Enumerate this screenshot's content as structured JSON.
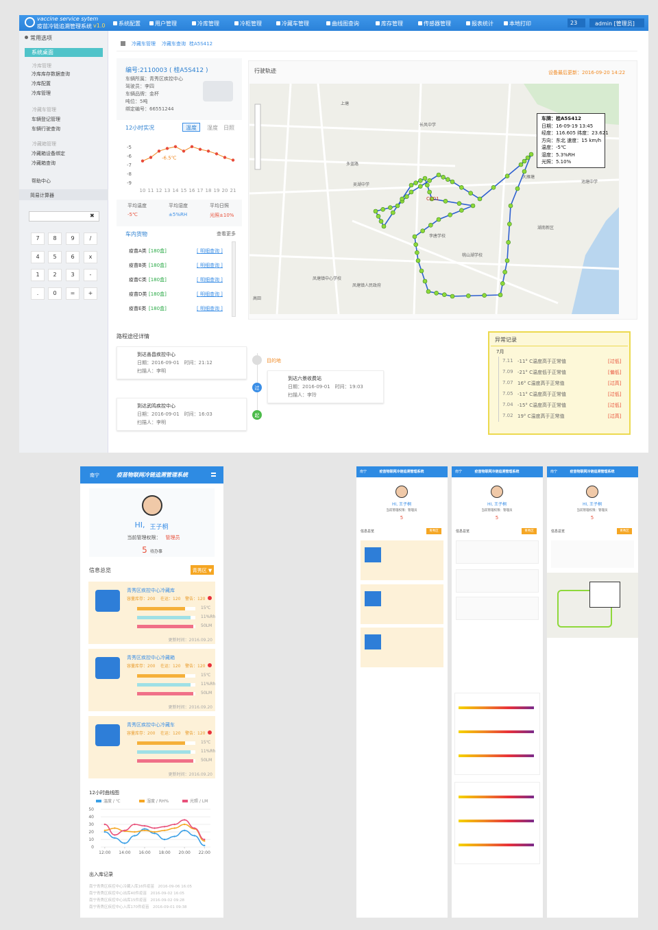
{
  "header": {
    "brand_en": "vaccine service sytem",
    "brand_cn": "疫苗冷链追溯管理系统",
    "version": "v1.0",
    "menu": [
      "系统配置",
      "用户管理",
      "冷库管理",
      "冷柜管理",
      "冷藏车管理",
      "曲线图查询",
      "库存管理",
      "传感器管理",
      "报表统计",
      "本地打印"
    ],
    "badge": "23",
    "user": "admin [管理员]"
  },
  "sidebar": {
    "section": "常用选项",
    "items": [
      {
        "label": "系统桌面",
        "kind": "active"
      },
      {
        "label": "冷库管理",
        "kind": "group"
      },
      {
        "label": "冷库库存数据查询",
        "kind": "link"
      },
      {
        "label": "冷库配置",
        "kind": "link"
      },
      {
        "label": "冷库管理",
        "kind": "link"
      },
      {
        "label": "冷藏车管理",
        "kind": "group"
      },
      {
        "label": "车辆登记管理",
        "kind": "link"
      },
      {
        "label": "车辆行驶查询",
        "kind": "link"
      },
      {
        "label": "冷藏箱管理",
        "kind": "group"
      },
      {
        "label": "冷藏箱设备绑定",
        "kind": "link"
      },
      {
        "label": "冷藏箱查询",
        "kind": "link"
      },
      {
        "label": "帮助中心",
        "kind": "link"
      }
    ],
    "calc_title": "简易计算器",
    "clear": "✖",
    "keys": [
      "7",
      "8",
      "9",
      "/",
      "4",
      "5",
      "6",
      "x",
      "1",
      "2",
      "3",
      "-",
      ".",
      "0",
      "=",
      "+"
    ]
  },
  "breadcrumb": [
    "冷藏车管理",
    "冷藏车查询",
    "桂A5S412"
  ],
  "vehicle": {
    "id": "编号:2110003 ( 桂A5S412 )",
    "details": [
      "车辆所属：青秀区疾控中心",
      "驾驶员：李四",
      "车辆品牌：金杯",
      "吨位：5吨",
      "绑定编号：66551244"
    ],
    "live_title": "12小时实况",
    "tabs": [
      "温度",
      "湿度",
      "日照"
    ],
    "chart": {
      "categories": [
        "10",
        "11",
        "12",
        "13",
        "14",
        "15",
        "16",
        "17",
        "18",
        "19",
        "20",
        "21"
      ],
      "values": [
        -6.6,
        -6.2,
        -5.5,
        -5.2,
        -5.0,
        -5.5,
        -5.0,
        -5.3,
        -5.5,
        -5.8,
        -6.2,
        -6.5
      ],
      "ylim": [
        -9.3,
        -4.4
      ],
      "yticks": [
        -5,
        -6,
        -7,
        -8,
        -9
      ],
      "color": "#f08a24",
      "annotation": "-6.5℃"
    },
    "stats": [
      {
        "label": "平均温度",
        "value": "-5℃"
      },
      {
        "label": "平均湿度",
        "value": "±5%RH"
      },
      {
        "label": "平均日照",
        "value": "光照±10%"
      }
    ],
    "cargo_title": "车内货物",
    "cargo_more": "查看更多",
    "cargo": [
      {
        "name": "疫苗A类",
        "qty": "[180盒]",
        "link": "[ 明细查询 ]"
      },
      {
        "name": "疫苗B类",
        "qty": "[180盒]",
        "link": "[ 明细查询 ]"
      },
      {
        "name": "疫苗C类",
        "qty": "[180盒]",
        "link": "[ 明细查询 ]"
      },
      {
        "name": "疫苗D类",
        "qty": "[180盒]",
        "link": "[ 明细查询 ]"
      },
      {
        "name": "疫苗E类",
        "qty": "[180盒]",
        "link": "[ 明细查询 ]"
      }
    ]
  },
  "map": {
    "title": "行驶轨迹",
    "updated": "设备最后更新：2016-09-20 14:22",
    "marker": "CC01",
    "labels": [
      "上塘",
      "长风中学",
      "多蓝路",
      "吴湖中学",
      "李唐学校",
      "桃山湖学校",
      "凤塘镇中心学校",
      "凤塘镇人民政府",
      "池塘中学",
      "湖南新区",
      "大雁塘",
      "高田"
    ],
    "info": [
      "车牌：桂A5S412",
      "日期：16-09-19 13:45",
      "经度：116.605 纬度：23.621",
      "方向：东北 速度：15 km/h",
      "温度：-5℃",
      "湿度：5.3%RH",
      "光照：5.10%"
    ]
  },
  "route": {
    "title": "路程途径详情",
    "destination": "目的地",
    "pass": "过",
    "start": "起",
    "stops": [
      {
        "title": "到达善昌疾控中心",
        "time": "日期：2016-09-01　时间：21:12",
        "person": "扫描人：李明"
      },
      {
        "title": "到达六景收费站",
        "time": "日期：2016-09-01　时间：19:03",
        "person": "扫描人：李玲"
      },
      {
        "title": "到达武鸣疾控中心",
        "time": "日期：2016-09-01　时间：16:03",
        "person": "扫描人：李明"
      }
    ]
  },
  "anomaly": {
    "title": "异常记录",
    "month": "7月",
    "rows": [
      {
        "date": "7.11",
        "text": "-11° C温度高于正常值",
        "status": "[过低]"
      },
      {
        "date": "7.09",
        "text": "-21° C温度低于正常值",
        "status": "[偏低]"
      },
      {
        "date": "7.07",
        "text": "16° C温度高于正常值",
        "status": "[过高]"
      },
      {
        "date": "7.05",
        "text": "-11° C温度高于正常值",
        "status": "[过低]"
      },
      {
        "date": "7.04",
        "text": "-15° C温度高于正常值",
        "status": "[过低]"
      },
      {
        "date": "7.02",
        "text": "19° C温度高于正常值",
        "status": "[过高]"
      }
    ]
  },
  "mobile": {
    "city": "南宁",
    "title": "疫苗物联网冷链追溯管理系统",
    "greeting_hi": "HI,",
    "name": "王子桐",
    "role": "当前管理权限：",
    "role_value": "管理员",
    "count": "5",
    "count_label": "待办事",
    "section": "信息总览",
    "button": "青秀区 ▼",
    "cards": [
      {
        "title": "青秀区疾控中心冷藏库",
        "stock": "容量库存：200",
        "transit": "在运：120",
        "warn": "警告：120",
        "bars": [
          "15℃",
          "11%Rh",
          "50LM"
        ],
        "updated": "更新时间：2016.09.20"
      },
      {
        "title": "青秀区疾控中心冷藏箱",
        "stock": "容量库存：200",
        "transit": "在运：120",
        "warn": "警告：120",
        "bars": [
          "15℃",
          "11%Rh",
          "50LM"
        ],
        "updated": "更新时间：2016.09.20"
      },
      {
        "title": "青秀区疾控中心冷藏车",
        "stock": "容量库存：200",
        "transit": "在运：120",
        "warn": "警告：120",
        "bars": [
          "15℃",
          "11%Rh",
          "50LM"
        ],
        "updated": "更新时间：2016.09.20"
      }
    ],
    "chart": {
      "title": "12小时曲线图",
      "x": [
        12,
        13,
        14,
        15,
        16,
        17,
        18,
        19,
        20,
        21,
        22
      ],
      "xlim": [
        11.6,
        22.6
      ],
      "xticks": [
        {
          "value": 12,
          "label": "12:00"
        },
        {
          "value": 14,
          "label": "14:00"
        },
        {
          "value": 16,
          "label": "16:00"
        },
        {
          "value": 18,
          "label": "18:00"
        },
        {
          "value": 20,
          "label": "20:00"
        },
        {
          "value": 22,
          "label": "22:00"
        }
      ],
      "ylim": [
        0,
        50
      ],
      "yticks": [
        0,
        10,
        20,
        30,
        40,
        50
      ],
      "grid": true,
      "series": [
        {
          "name": "温度 / ℃",
          "color": "#3ba0e6",
          "values": [
            20,
            12,
            5,
            15,
            24,
            18,
            10,
            14,
            22,
            15,
            2
          ]
        },
        {
          "name": "湿度 / RH%",
          "color": "#f5a623",
          "values": [
            22,
            25,
            21,
            20,
            22,
            20,
            22,
            25,
            30,
            24,
            8
          ]
        },
        {
          "name": "光照 / LM",
          "color": "#e8507a",
          "values": [
            30,
            16,
            22,
            30,
            28,
            25,
            27,
            30,
            36,
            25,
            10
          ]
        }
      ]
    },
    "records_title": "出入库记录",
    "records": [
      "南宁青秀区疾控中心冷藏入库16件疫苗　2016-09-06 16:05",
      "南宁青秀区疾控中心出库40件疫苗　2016-09-02 16:05",
      "南宁青秀区疾控中心出库15件疫苗　2016-09-02 09:28",
      "南宁青秀区疾控中心入库170件疫苗　2016-09-01 09:38"
    ]
  },
  "mini_screens": [
    {
      "city": "南宁",
      "title": "疫苗物联网冷链追溯管理系统",
      "greeting": "HI, 王子桐",
      "role": "当前管理权限：管理员",
      "count": "5",
      "section": "信息总览",
      "button": "青秀区"
    },
    {
      "city": "南宁",
      "title": "疫苗物联网冷链追溯管理系统",
      "greeting": "HI, 王子桐",
      "role": "当前管理权限：管理员",
      "count": "5",
      "section": "信息总览",
      "button": "青秀区"
    },
    {
      "city": "南宁",
      "title": "疫苗物联网冷链追溯管理系统",
      "greeting": "HI, 王子桐",
      "role": "当前管理权限：管理员",
      "count": "5",
      "section": "信息总览",
      "button": "青秀区"
    }
  ]
}
